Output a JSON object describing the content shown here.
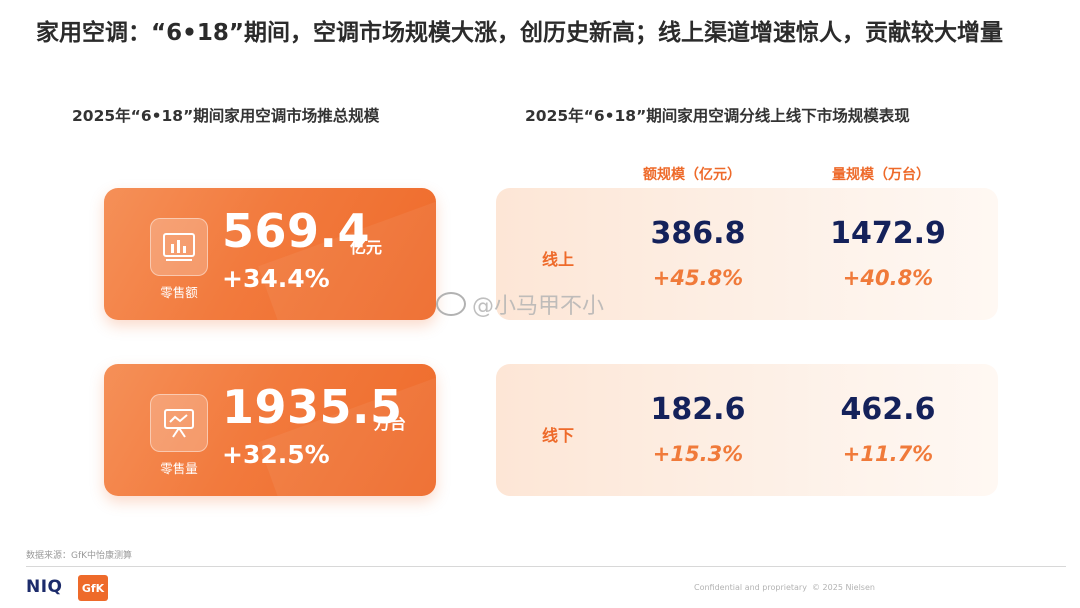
{
  "title": "家用空调：“6•18”期间，空调市场规模大涨，创历史新高；线上渠道增速惊人，贡献较大增量",
  "left_subtitle": "2025年“6•18”期间家用空调市场推总规模",
  "right_subtitle": "2025年“6•18”期间家用空调分线上线下市场规模表现",
  "cards": [
    {
      "icon": "bar-chart-icon",
      "label": "零售额",
      "value": "569.4",
      "unit": "亿元",
      "growth": "+34.4%"
    },
    {
      "icon": "presentation-board-icon",
      "label": "零售量",
      "value": "1935.5",
      "unit": "万台",
      "growth": "+32.5%"
    }
  ],
  "columns": [
    "额规模（亿元）",
    "量规模（万台）"
  ],
  "rows": [
    {
      "label": "线上",
      "amount": "386.8",
      "amount_growth": "+45.8%",
      "volume": "1472.9",
      "volume_growth": "+40.8%"
    },
    {
      "label": "线下",
      "amount": "182.6",
      "amount_growth": "+15.3%",
      "volume": "462.6",
      "volume_growth": "+11.7%"
    }
  ],
  "watermark": "@小马甲不小",
  "source": "数据来源：GfK中怡康测算",
  "footer": {
    "niq": "NIQ",
    "gfk": "GfK",
    "confidential": "Confidential and proprietary",
    "copyright": "© 2025 Nielsen"
  },
  "colors": {
    "accent": "#ee6a2a",
    "navy": "#14215a",
    "panel": "#fdefe4"
  }
}
